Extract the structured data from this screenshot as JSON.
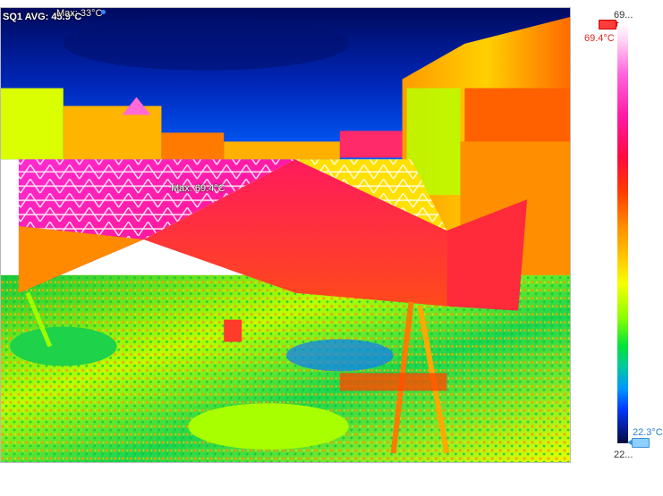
{
  "overlay": {
    "sq1_label": "SQ1 AVG: 45.9°C",
    "top_max_label": "Max: 33°C",
    "max_marker_label": "Max: 69.4°C"
  },
  "scale": {
    "top_label": "69...",
    "bottom_label": "22...",
    "max_temp": "69.4°C",
    "min_temp": "22.3°C",
    "colors": [
      "#ffffff",
      "#ff1aa6",
      "#ff0a3c",
      "#ff8a00",
      "#f7ff00",
      "#00e23a",
      "#0096ff",
      "#050a3c"
    ]
  },
  "icons": {
    "crosshair": "crosshair-icon",
    "max_handle": "max-range-handle-icon",
    "min_handle": "min-range-handle-icon"
  }
}
